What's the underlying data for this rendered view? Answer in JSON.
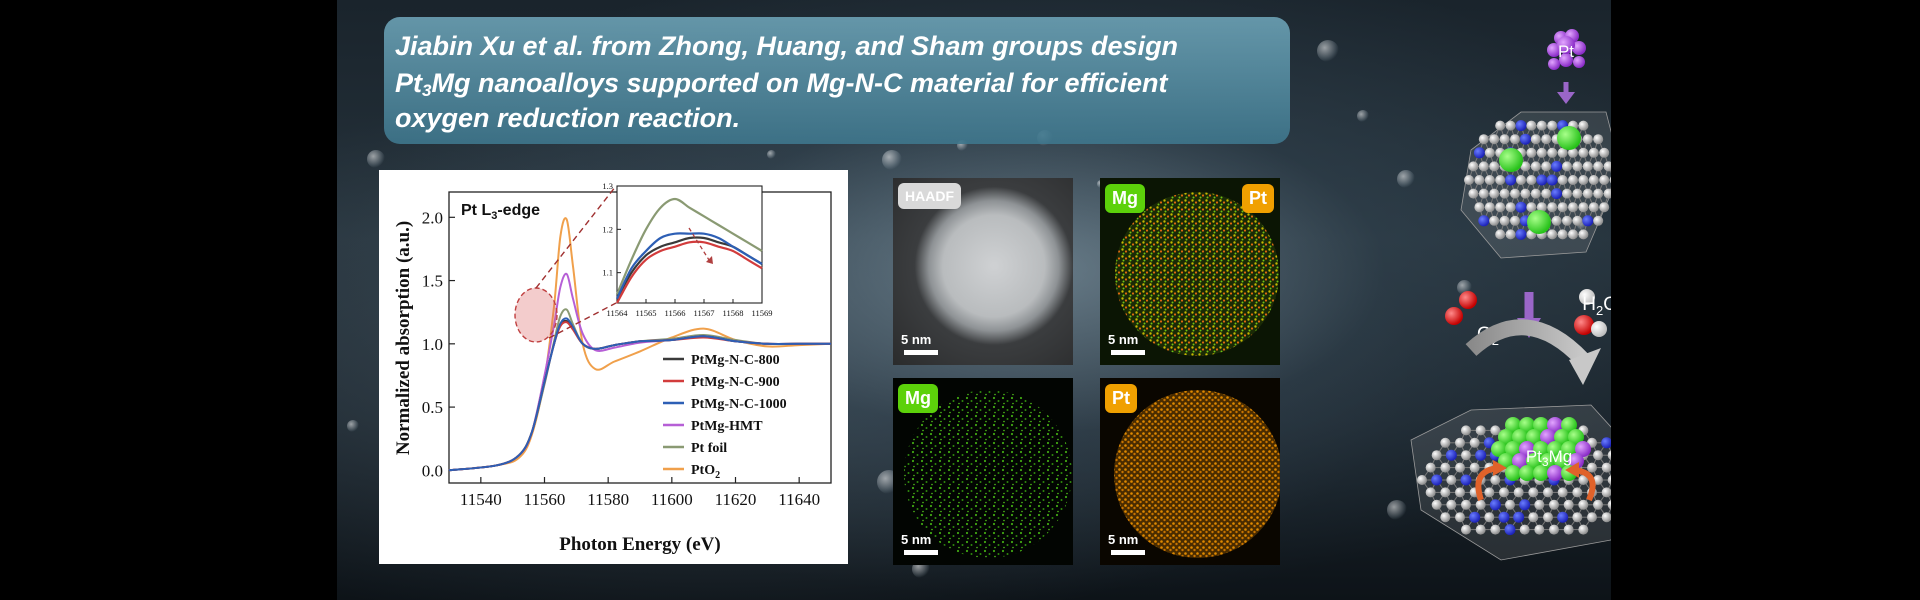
{
  "title": {
    "line1": "Jiabin Xu et al. from Zhong, Huang, and Sham groups design",
    "line2_pre": "Pt",
    "line2_sub": "3",
    "line2_post": "Mg nanoalloys supported on Mg-N-C material for efficient",
    "line3": "oxygen reduction reaction."
  },
  "chart_data": {
    "type": "line",
    "edge_label_pre": "Pt L",
    "edge_label_sub": "3",
    "edge_label_post": "-edge",
    "xlabel": "Photon Energy (eV)",
    "ylabel": "Normalized absorption (a.u.)",
    "xlim": [
      11530,
      11650
    ],
    "ylim": [
      -0.1,
      2.2
    ],
    "xticks": [
      11540,
      11560,
      11580,
      11600,
      11620,
      11640
    ],
    "yticks": [
      0.0,
      0.5,
      1.0,
      1.5,
      2.0
    ],
    "ytick_labels": [
      "0.0",
      "0.5",
      "1.0",
      "1.5",
      "2.0"
    ],
    "series": [
      {
        "name": "PtMg-N-C-800",
        "color": "#3a3a3a",
        "x": [
          11530,
          11545,
          11552,
          11556,
          11560,
          11563,
          11565,
          11567,
          11569,
          11572,
          11576,
          11582,
          11590,
          11600,
          11610,
          11620,
          11630,
          11640,
          11650
        ],
        "y": [
          0.0,
          0.04,
          0.12,
          0.3,
          0.7,
          1.0,
          1.15,
          1.18,
          1.12,
          1.0,
          0.96,
          0.99,
          1.02,
          1.03,
          1.06,
          1.02,
          1.0,
          1.0,
          1.0
        ]
      },
      {
        "name": "PtMg-N-C-900",
        "color": "#d23c3c",
        "x": [
          11530,
          11545,
          11552,
          11556,
          11560,
          11563,
          11565,
          11567,
          11569,
          11572,
          11576,
          11582,
          11590,
          11600,
          11610,
          11620,
          11630,
          11640,
          11650
        ],
        "y": [
          0.0,
          0.04,
          0.12,
          0.3,
          0.7,
          1.0,
          1.14,
          1.17,
          1.11,
          1.0,
          0.96,
          0.99,
          1.02,
          1.03,
          1.05,
          1.02,
          1.0,
          1.0,
          1.0
        ]
      },
      {
        "name": "PtMg-N-C-1000",
        "color": "#2d5fb5",
        "x": [
          11530,
          11545,
          11552,
          11556,
          11560,
          11563,
          11565,
          11567,
          11569,
          11572,
          11576,
          11582,
          11590,
          11600,
          11610,
          11620,
          11630,
          11640,
          11650
        ],
        "y": [
          0.0,
          0.04,
          0.12,
          0.3,
          0.7,
          1.0,
          1.16,
          1.2,
          1.13,
          1.0,
          0.96,
          0.99,
          1.02,
          1.03,
          1.06,
          1.02,
          1.0,
          1.0,
          1.0
        ]
      },
      {
        "name": "PtMg-HMT",
        "color": "#b65fd6",
        "x": [
          11530,
          11545,
          11552,
          11556,
          11560,
          11563,
          11565,
          11567,
          11569,
          11572,
          11576,
          11582,
          11590,
          11600,
          11610,
          11620,
          11630,
          11640,
          11650
        ],
        "y": [
          0.0,
          0.04,
          0.12,
          0.3,
          0.75,
          1.15,
          1.45,
          1.55,
          1.35,
          1.08,
          0.95,
          0.97,
          1.01,
          1.03,
          1.06,
          1.02,
          1.0,
          1.0,
          1.0
        ]
      },
      {
        "name": "Pt foil",
        "color": "#8a9a73",
        "x": [
          11530,
          11545,
          11552,
          11556,
          11560,
          11563,
          11565,
          11567,
          11569,
          11572,
          11576,
          11582,
          11590,
          11600,
          11610,
          11620,
          11630,
          11640,
          11650
        ],
        "y": [
          0.0,
          0.04,
          0.12,
          0.3,
          0.68,
          1.02,
          1.22,
          1.27,
          1.15,
          1.0,
          0.96,
          0.99,
          1.02,
          1.04,
          1.07,
          1.03,
          1.0,
          1.0,
          1.0
        ]
      },
      {
        "name": "PtO",
        "name_sub": "2",
        "color": "#f0a04b",
        "x": [
          11530,
          11545,
          11552,
          11556,
          11560,
          11563,
          11565,
          11567,
          11569,
          11572,
          11576,
          11582,
          11590,
          11600,
          11610,
          11620,
          11630,
          11640,
          11650
        ],
        "y": [
          0.0,
          0.04,
          0.1,
          0.28,
          0.72,
          1.3,
          1.85,
          1.98,
          1.6,
          1.0,
          0.8,
          0.86,
          0.94,
          1.05,
          1.12,
          1.03,
          0.98,
          0.99,
          1.0
        ]
      }
    ],
    "inset": {
      "xlim": [
        11564,
        11569
      ],
      "ylim": [
        1.03,
        1.3
      ],
      "xticks": [
        11564,
        11565,
        11566,
        11567,
        11568,
        11569
      ],
      "yticks": [
        1.1,
        1.2,
        1.3
      ],
      "ytick_labels": [
        "1.1",
        "1.2",
        "1.3"
      ],
      "series": [
        {
          "color": "#8a9a73",
          "x": [
            11564.0,
            11564.5,
            11565.0,
            11565.5,
            11566.0,
            11566.5,
            11567.0,
            11567.5,
            11568.0,
            11568.5,
            11569.0
          ],
          "y": [
            1.05,
            1.13,
            1.2,
            1.25,
            1.27,
            1.25,
            1.23,
            1.21,
            1.19,
            1.17,
            1.15
          ]
        },
        {
          "color": "#3a3a3a",
          "x": [
            11564.0,
            11564.5,
            11565.0,
            11565.5,
            11566.0,
            11566.5,
            11567.0,
            11567.5,
            11568.0,
            11568.5,
            11569.0
          ],
          "y": [
            1.04,
            1.1,
            1.14,
            1.16,
            1.17,
            1.18,
            1.18,
            1.17,
            1.16,
            1.14,
            1.12
          ]
        },
        {
          "color": "#d23c3c",
          "x": [
            11564.0,
            11564.5,
            11565.0,
            11565.5,
            11566.0,
            11566.5,
            11567.0,
            11567.5,
            11568.0,
            11568.5,
            11569.0
          ],
          "y": [
            1.03,
            1.09,
            1.13,
            1.15,
            1.16,
            1.17,
            1.17,
            1.16,
            1.15,
            1.13,
            1.11
          ]
        },
        {
          "color": "#2d5fb5",
          "x": [
            11564.0,
            11564.5,
            11565.0,
            11565.5,
            11566.0,
            11566.5,
            11567.0,
            11567.5,
            11568.0,
            11568.5,
            11569.0
          ],
          "y": [
            1.04,
            1.11,
            1.15,
            1.18,
            1.19,
            1.19,
            1.19,
            1.18,
            1.16,
            1.14,
            1.12
          ]
        }
      ]
    }
  },
  "micrographs": {
    "haadf_label": "HAADF",
    "mg_label": "Mg",
    "pt_label": "Pt",
    "scale_label": "5 nm",
    "mg_color": "#5cd10a",
    "pt_color": "#f0a000"
  },
  "scheme": {
    "pt_label": "Pt",
    "o2_pre": "O",
    "o2_sub": "2",
    "h2o_pre": "H",
    "h2o_sub": "2",
    "h2o_post": "O",
    "alloy_pre": "Pt",
    "alloy_sub": "3",
    "alloy_post": "Mg"
  }
}
